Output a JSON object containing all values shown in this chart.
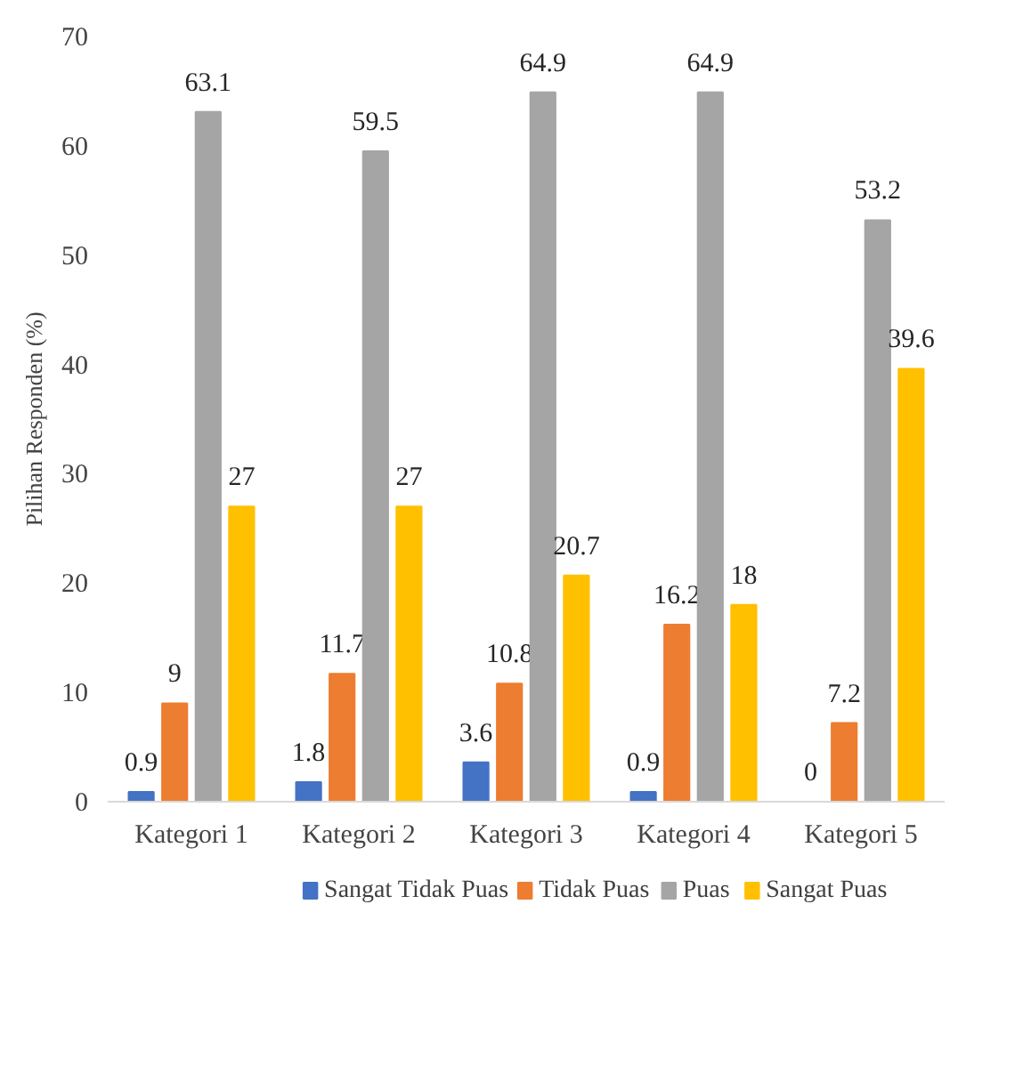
{
  "chart_data": {
    "type": "bar",
    "ylabel": "Pilihan Responden (%)",
    "categories": [
      "Kategori 1",
      "Kategori 2",
      "Kategori 3",
      "Kategori 4",
      "Kategori 5"
    ],
    "series": [
      {
        "name": "Sangat Tidak Puas",
        "color": "#4472c4",
        "values": [
          0.9,
          1.8,
          3.6,
          0.9,
          0
        ]
      },
      {
        "name": "Tidak Puas",
        "color": "#ed7d31",
        "values": [
          9,
          11.7,
          10.8,
          16.2,
          7.2
        ]
      },
      {
        "name": "Puas",
        "color": "#a5a5a5",
        "values": [
          63.1,
          59.5,
          64.9,
          64.9,
          53.2
        ]
      },
      {
        "name": "Sangat Puas",
        "color": "#ffc000",
        "values": [
          27,
          27,
          20.7,
          18,
          39.6
        ]
      }
    ],
    "ylim": [
      0,
      70
    ],
    "yticks": [
      0,
      10,
      20,
      30,
      40,
      50,
      60,
      70
    ],
    "grid": false,
    "legend": "bottom",
    "data_labels": true
  }
}
